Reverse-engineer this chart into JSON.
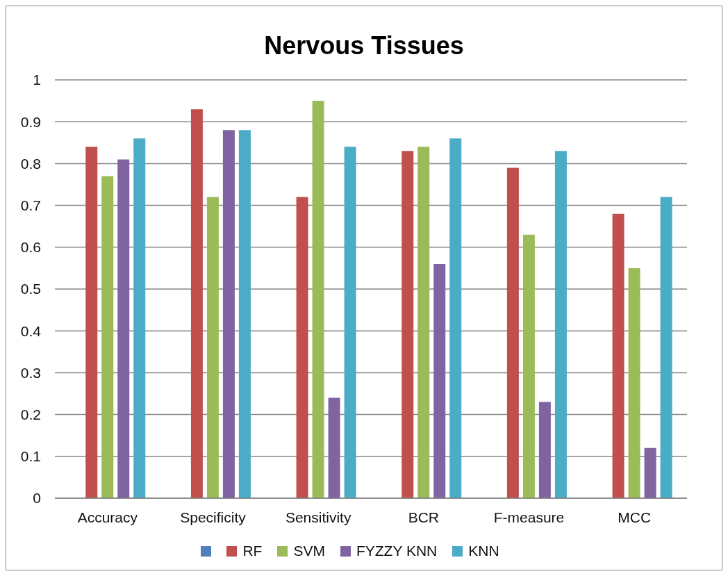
{
  "chart_data": {
    "type": "bar",
    "title": "Nervous Tissues",
    "categories": [
      "Accuracy",
      "Specificity",
      "Sensitivity",
      "BCR",
      "F-measure",
      "MCC"
    ],
    "series": [
      {
        "color": "#4f81bd",
        "values": [
          null,
          null,
          null,
          null,
          null,
          null
        ]
      },
      {
        "name": "RF",
        "color": "#c0504d",
        "values": [
          0.84,
          0.93,
          0.72,
          0.83,
          0.79,
          0.68
        ]
      },
      {
        "name": "SVM",
        "color": "#9bbb59",
        "values": [
          0.77,
          0.72,
          0.95,
          0.84,
          0.63,
          0.55
        ]
      },
      {
        "name": "FYZZY KNN",
        "color": "#8064a2",
        "values": [
          0.81,
          0.88,
          0.24,
          0.56,
          0.23,
          0.12
        ]
      },
      {
        "name": "KNN",
        "color": "#4bacc6",
        "values": [
          0.86,
          0.88,
          0.84,
          0.86,
          0.83,
          0.72
        ]
      }
    ],
    "ylim": [
      0,
      1
    ],
    "yticks": [
      0,
      0.1,
      0.2,
      0.3,
      0.4,
      0.5,
      0.6,
      0.7,
      0.8,
      0.9,
      1
    ],
    "grid": "y",
    "legend": "bottom"
  }
}
